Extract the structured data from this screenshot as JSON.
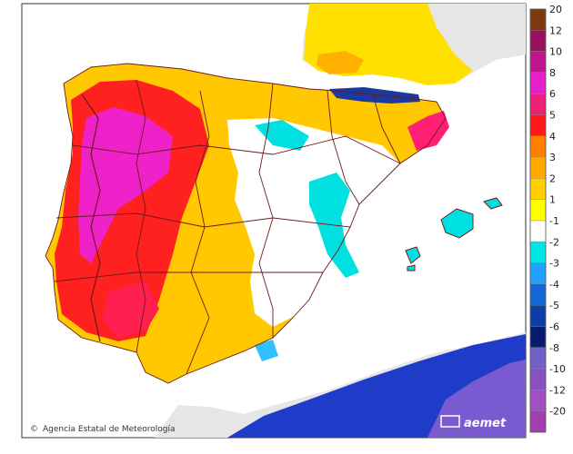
{
  "map": {
    "credit": "Agencia Estatal de Meteorología",
    "credit_symbol": "©",
    "logo": "aemet",
    "background_colors": {
      "sea": "#ffffff",
      "foreign_land": "#e6e6e6",
      "border": "#6b1a1a"
    }
  },
  "legend": {
    "items": [
      {
        "label": "20",
        "color": "#7a3a10"
      },
      {
        "label": "12",
        "color": "#9a1060"
      },
      {
        "label": "10",
        "color": "#c01590"
      },
      {
        "label": "8",
        "color": "#e81fc8"
      },
      {
        "label": "6",
        "color": "#ee2075"
      },
      {
        "label": "5",
        "color": "#ff1a1a"
      },
      {
        "label": "4",
        "color": "#ff8000"
      },
      {
        "label": "3",
        "color": "#ffaa00"
      },
      {
        "label": "2",
        "color": "#ffd000"
      },
      {
        "label": "1",
        "color": "#ffff00"
      },
      {
        "label": "-1",
        "color": "#ffffff"
      },
      {
        "label": "-2",
        "color": "#00e5e5"
      },
      {
        "label": "-3",
        "color": "#20a0ff"
      },
      {
        "label": "-4",
        "color": "#1566d6"
      },
      {
        "label": "-5",
        "color": "#0c3ea8"
      },
      {
        "label": "-6",
        "color": "#0a1a6e"
      },
      {
        "label": "-8",
        "color": "#7060c8"
      },
      {
        "label": "-10",
        "color": "#8850c0"
      },
      {
        "label": "-12",
        "color": "#a050c0"
      },
      {
        "label": "-20",
        "color": "#a040b0"
      }
    ]
  }
}
